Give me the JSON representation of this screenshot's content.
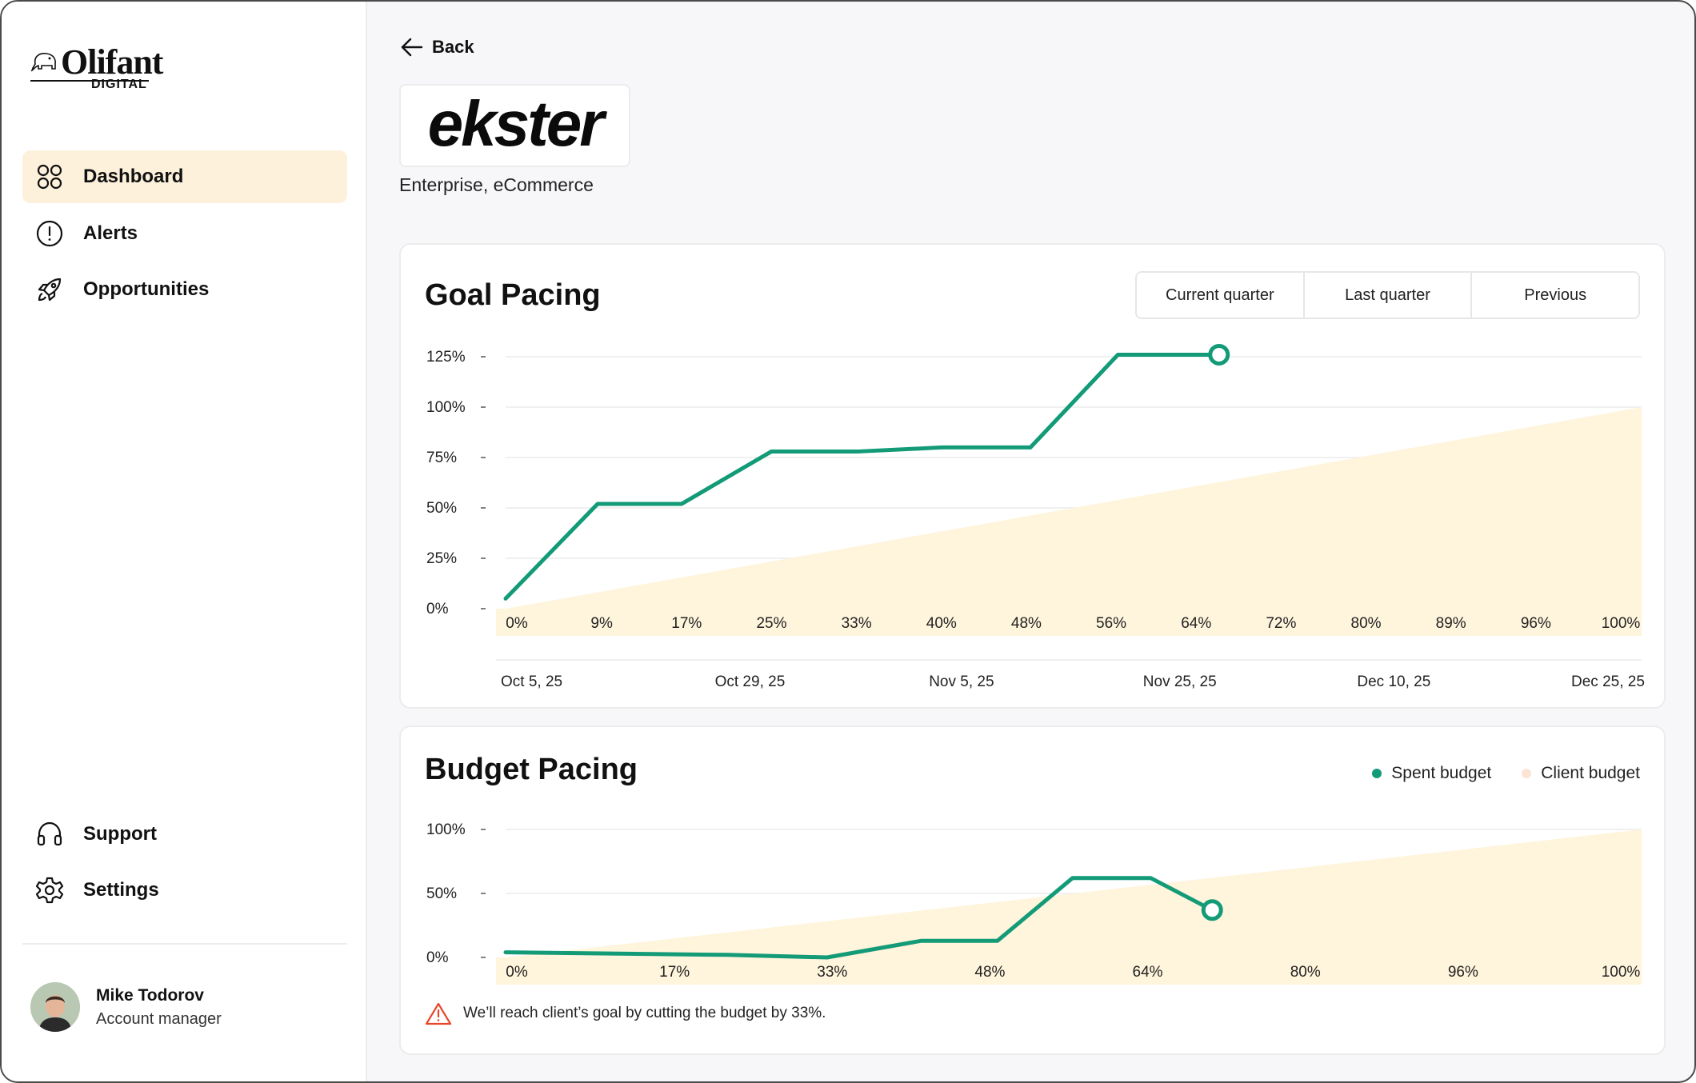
{
  "app": {
    "logo_word": "Olifant",
    "logo_sub": "DIGITAL"
  },
  "sidebar": {
    "items": [
      {
        "label": "Dashboard",
        "icon": "grid-icon",
        "active": true
      },
      {
        "label": "Alerts",
        "icon": "alert-circle-icon"
      },
      {
        "label": "Opportunities",
        "icon": "rocket-icon"
      }
    ],
    "bottom_items": [
      {
        "label": "Support",
        "icon": "headphones-icon"
      },
      {
        "label": "Settings",
        "icon": "gear-icon"
      }
    ],
    "user": {
      "name": "Mike Todorov",
      "role": "Account manager"
    }
  },
  "header": {
    "back_label": "Back",
    "brand_logo": "ekster",
    "brand_tags": "Enterprise, eCommerce"
  },
  "colors": {
    "accent_green": "#139b78",
    "client_fill": "#fff4dc",
    "active_nav": "#fdf1dc",
    "warning": "#e8452a"
  },
  "goal_pacing": {
    "title": "Goal Pacing",
    "range_options": [
      "Current quarter",
      "Last quarter",
      "Previous"
    ],
    "chart_data": {
      "type": "line",
      "y_ticks": [
        "125%",
        "100%",
        "75%",
        "50%",
        "25%",
        "0%"
      ],
      "ylim": [
        0,
        125
      ],
      "progress_ticks": [
        "0%",
        "9%",
        "17%",
        "25%",
        "33%",
        "40%",
        "48%",
        "56%",
        "64%",
        "72%",
        "80%",
        "89%",
        "96%",
        "100%"
      ],
      "date_ticks": [
        "Oct 5, 25",
        "Oct 29, 25",
        "Nov 5, 25",
        "Nov 25, 25",
        "Dec 10, 25",
        "Dec 25, 25"
      ],
      "x_range": [
        0,
        100
      ],
      "series": [
        {
          "values_x": [
            0,
            8.1,
            15.5,
            23.4,
            31.1,
            38.4,
            46.2,
            53.9,
            62.8
          ],
          "values_y": [
            5,
            52,
            52,
            78,
            78,
            80,
            80,
            126,
            126
          ]
        }
      ],
      "area": {
        "x": [
          0,
          100
        ],
        "y": [
          0,
          100
        ]
      }
    }
  },
  "budget_pacing": {
    "title": "Budget Pacing",
    "legend": [
      {
        "label": "Spent budget",
        "color": "#139b78"
      },
      {
        "label": "Client budget",
        "color": "#fde3d4"
      }
    ],
    "chart_data": {
      "type": "line",
      "y_ticks": [
        "100%",
        "50%",
        "0%"
      ],
      "ylim": [
        0,
        100
      ],
      "progress_ticks": [
        "0%",
        "17%",
        "33%",
        "48%",
        "64%",
        "80%",
        "96%",
        "100%"
      ],
      "x_range": [
        0,
        100
      ],
      "series": [
        {
          "values_x": [
            0,
            19.5,
            28.3,
            36.6,
            43.3,
            49.9,
            56.8,
            62.2
          ],
          "values_y": [
            4,
            2,
            0,
            13,
            13,
            62,
            62,
            37
          ]
        }
      ],
      "area": {
        "x": [
          0,
          100
        ],
        "y": [
          0,
          100
        ]
      }
    },
    "alert_text": "We’ll reach client’s goal by cutting the budget by 33%."
  }
}
